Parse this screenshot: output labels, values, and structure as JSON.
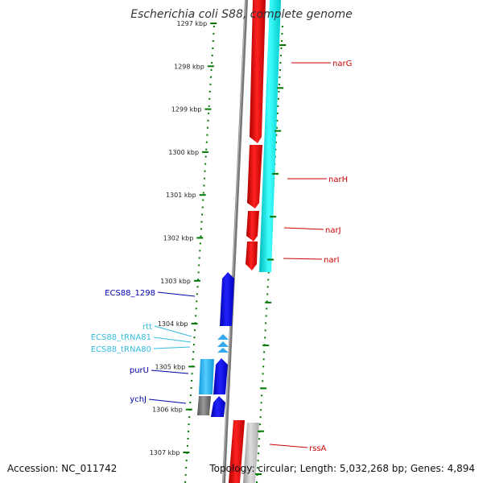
{
  "title": "Escherichia coli S88, complete genome",
  "footer": {
    "accession": "Accession: NC_011742",
    "topology": "Topology: circular; Length: 5,032,268 bp; Genes: 4,894"
  },
  "ruler": {
    "unit": "kbp",
    "ticks": [
      {
        "kbp": 1297,
        "label": "1297 kbp"
      },
      {
        "kbp": 1298,
        "label": "1298 kbp"
      },
      {
        "kbp": 1299,
        "label": "1299 kbp"
      },
      {
        "kbp": 1300,
        "label": "1300 kbp"
      },
      {
        "kbp": 1301,
        "label": "1301 kbp"
      },
      {
        "kbp": 1302,
        "label": "1302 kbp"
      },
      {
        "kbp": 1303,
        "label": "1303 kbp"
      },
      {
        "kbp": 1304,
        "label": "1304 kbp"
      },
      {
        "kbp": 1305,
        "label": "1305 kbp"
      },
      {
        "kbp": 1306,
        "label": "1306 kbp"
      },
      {
        "kbp": 1307,
        "label": "1307 kbp"
      }
    ]
  },
  "genes": [
    {
      "name": "narG",
      "color": "#cc0000"
    },
    {
      "name": "narH",
      "color": "#cc0000"
    },
    {
      "name": "narJ",
      "color": "#cc0000"
    },
    {
      "name": "narI",
      "color": "#cc0000"
    },
    {
      "name": "ECS88_1298",
      "color": "#0000aa"
    },
    {
      "name": "rtt",
      "color": "#33bbdd"
    },
    {
      "name": "ECS88_tRNA81",
      "color": "#33bbdd"
    },
    {
      "name": "ECS88_tRNA80",
      "color": "#33bbdd"
    },
    {
      "name": "purU",
      "color": "#0000aa"
    },
    {
      "name": "ychJ",
      "color": "#0000aa"
    },
    {
      "name": "rssA",
      "color": "#cc0000"
    }
  ],
  "colors": {
    "forward_cds": "#ee0000",
    "reverse_cds": "#0000ee",
    "rna": "#00eeee",
    "backbone": "#888888",
    "ticks": "#007700"
  }
}
